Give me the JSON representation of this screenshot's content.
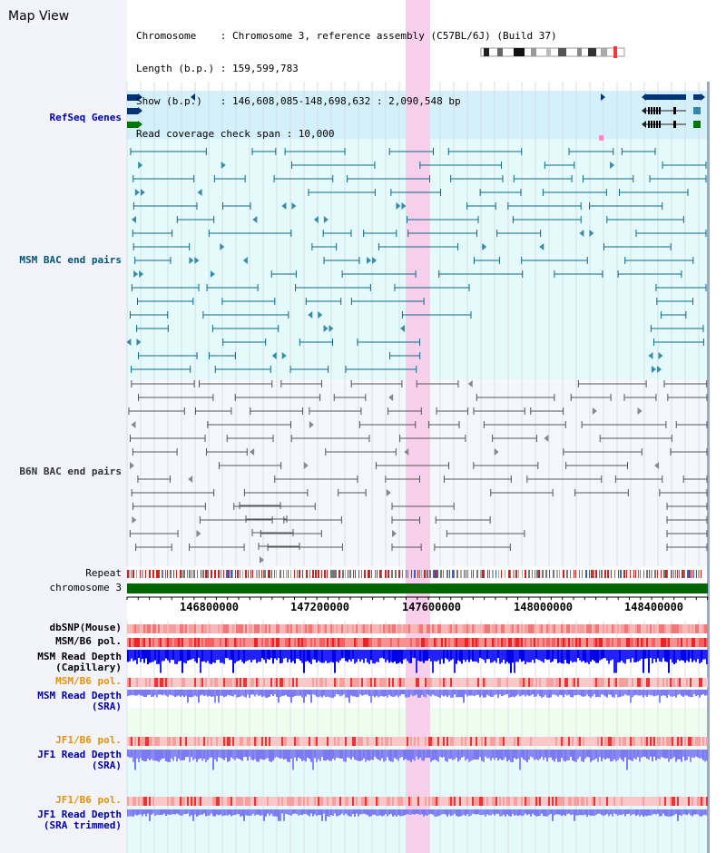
{
  "view_title": "Map View",
  "info_lines": [
    "Chromosome    : Chromosome 3, reference assembly (C57BL/6J) (Build 37)",
    "Length (b.p.) : 159,599,783",
    "Show (b.p.)   : 146,608,085-148,698,632 : 2,090,548 bp",
    "Read coverage check span : 10,000"
  ],
  "tracks": [
    {
      "label": "RefSeq Genes",
      "color": "#0000b0"
    },
    {
      "label": "MSM BAC end pairs",
      "color": "#005577"
    },
    {
      "label": "B6N BAC end pairs",
      "color": "#333333"
    },
    {
      "label": "Repeat",
      "color": "#000000"
    },
    {
      "label": "chromosome 3",
      "color": "#000000"
    },
    {
      "label": "dbSNP(Mouse)",
      "color": "#000000"
    },
    {
      "label": "MSM/B6 pol.",
      "color": "#000000"
    },
    {
      "label": "MSM Read Depth",
      "color": "#000000"
    },
    {
      "label": "(Capillary)",
      "color": "#000000"
    },
    {
      "label": "MSM/B6 pol.",
      "color": "#e89000"
    },
    {
      "label": "MSM Read Depth",
      "color": "#0000b0"
    },
    {
      "label": "(SRA)",
      "color": "#0000b0"
    },
    {
      "label": "JF1/B6 pol.",
      "color": "#e89000"
    },
    {
      "label": "JF1 Read Depth",
      "color": "#0000b0"
    },
    {
      "label": "(SRA)",
      "color": "#0000b0"
    },
    {
      "label": "JF1/B6 pol.",
      "color": "#e89000"
    },
    {
      "label": "JF1 Read Depth",
      "color": "#0000b0"
    },
    {
      "label": "(SRA trimmed)",
      "color": "#0000b0"
    }
  ],
  "axis_ticks": [
    "146800000",
    "147200000",
    "147600000",
    "148000000",
    "148400000"
  ],
  "colors": {
    "refseq_bg": "#d4f0fb",
    "msm_bg": "#e4fafb",
    "highlight": "#f8d0ec",
    "msm_pair": "#0d6a8a",
    "b6n_pair": "#555555",
    "chromosome_bar": "#006600",
    "snp_band": "#f07070",
    "depth_capillary": "#0000e8",
    "depth_sra": "#8888f8"
  }
}
